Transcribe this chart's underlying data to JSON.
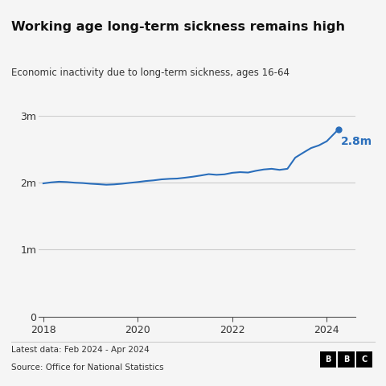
{
  "title": "Working age long-term sickness remains high",
  "subtitle": "Economic inactivity due to long-term sickness, ages 16-64",
  "source_line1": "Latest data: Feb 2024 - Apr 2024",
  "source_line2": "Source: Office for National Statistics",
  "line_color": "#2a6ebb",
  "background_color": "#f5f5f5",
  "ylim": [
    0,
    3000000
  ],
  "yticks": [
    0,
    1000000,
    2000000,
    3000000
  ],
  "ytick_labels": [
    "0",
    "1m",
    "2m",
    "3m"
  ],
  "end_label": "2.8m",
  "end_label_color": "#2a6ebb",
  "x_values_full": [
    2018.0,
    2018.167,
    2018.333,
    2018.5,
    2018.667,
    2018.833,
    2019.0,
    2019.167,
    2019.333,
    2019.5,
    2019.667,
    2019.833,
    2020.0,
    2020.167,
    2020.333,
    2020.5,
    2020.667,
    2020.833,
    2021.0,
    2021.167,
    2021.333,
    2021.5,
    2021.667,
    2021.833,
    2022.0,
    2022.167,
    2022.333,
    2022.5,
    2022.667,
    2022.833,
    2023.0,
    2023.167,
    2023.333,
    2023.5,
    2023.667,
    2023.833,
    2024.0,
    2024.25
  ],
  "y_values_full": [
    1990000,
    2005000,
    2015000,
    2010000,
    2000000,
    1995000,
    1985000,
    1978000,
    1970000,
    1975000,
    1985000,
    1998000,
    2010000,
    2025000,
    2035000,
    2050000,
    2058000,
    2062000,
    2075000,
    2090000,
    2108000,
    2128000,
    2118000,
    2125000,
    2148000,
    2158000,
    2152000,
    2178000,
    2198000,
    2208000,
    2192000,
    2208000,
    2375000,
    2448000,
    2518000,
    2558000,
    2620000,
    2800000
  ],
  "xticks": [
    2018,
    2020,
    2022,
    2024
  ],
  "xlim": [
    2017.9,
    2024.6
  ]
}
